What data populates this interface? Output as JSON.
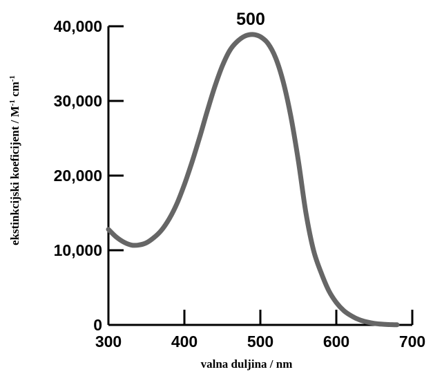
{
  "chart_data": {
    "type": "line",
    "title": "",
    "xlabel": "valna duljina / nm",
    "ylabel_parts": [
      "ekstinkcijski koeficijent / M",
      "-1",
      " cm",
      "-1"
    ],
    "xlim": [
      300,
      700
    ],
    "ylim": [
      0,
      40000
    ],
    "x_ticks": [
      300,
      400,
      500,
      600,
      700
    ],
    "x_tick_labels": [
      "300",
      "400",
      "500",
      "600",
      "700"
    ],
    "y_ticks": [
      0,
      10000,
      20000,
      30000,
      40000
    ],
    "y_tick_labels": [
      "0",
      "10,000",
      "20,000",
      "30,000",
      "40,000"
    ],
    "grid": false,
    "annotation": {
      "text": "500",
      "x": 490,
      "y": 38900
    },
    "line_color": "#666666",
    "series": [
      {
        "x": [
          300,
          310,
          320,
          330,
          340,
          350,
          360,
          370,
          380,
          390,
          400,
          410,
          420,
          430,
          440,
          450,
          460,
          470,
          480,
          490,
          500,
          510,
          520,
          530,
          540,
          550,
          560,
          570,
          580,
          590,
          600,
          610,
          620,
          630,
          640,
          650,
          660,
          670,
          680
        ],
        "y": [
          12800,
          11800,
          11100,
          10700,
          10700,
          11000,
          11700,
          12700,
          14200,
          16200,
          18800,
          21800,
          25100,
          28600,
          31900,
          34700,
          36800,
          38000,
          38700,
          38900,
          38600,
          37700,
          35800,
          32600,
          28000,
          22000,
          15000,
          10000,
          7000,
          4600,
          3000,
          1900,
          1200,
          700,
          400,
          200,
          100,
          50,
          20
        ]
      }
    ]
  }
}
